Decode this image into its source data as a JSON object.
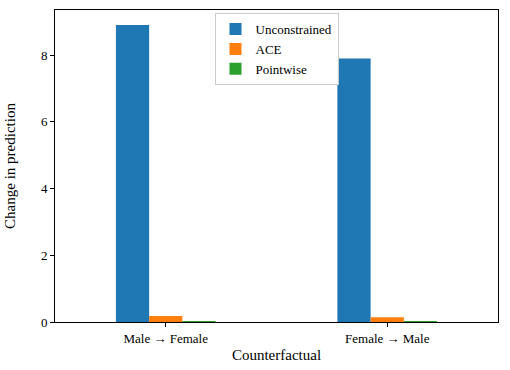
{
  "chart_data": {
    "type": "bar",
    "x_label": "Counterfactual",
    "y_label": "Change in prediction",
    "categories": [
      "Male → Female",
      "Female → Male"
    ],
    "series": [
      {
        "name": "Unconstrained",
        "color": "#1f77b4",
        "values": [
          8.9,
          7.9
        ]
      },
      {
        "name": "ACE",
        "color": "#ff7f0e",
        "values": [
          0.18,
          0.14
        ]
      },
      {
        "name": "Pointwise",
        "color": "#2ca02c",
        "values": [
          0.03,
          0.02
        ]
      }
    ],
    "ylim": [
      0,
      9.35
    ],
    "yticks": [
      0,
      2,
      4,
      6,
      8
    ],
    "grid": false,
    "legend": "upper center"
  }
}
